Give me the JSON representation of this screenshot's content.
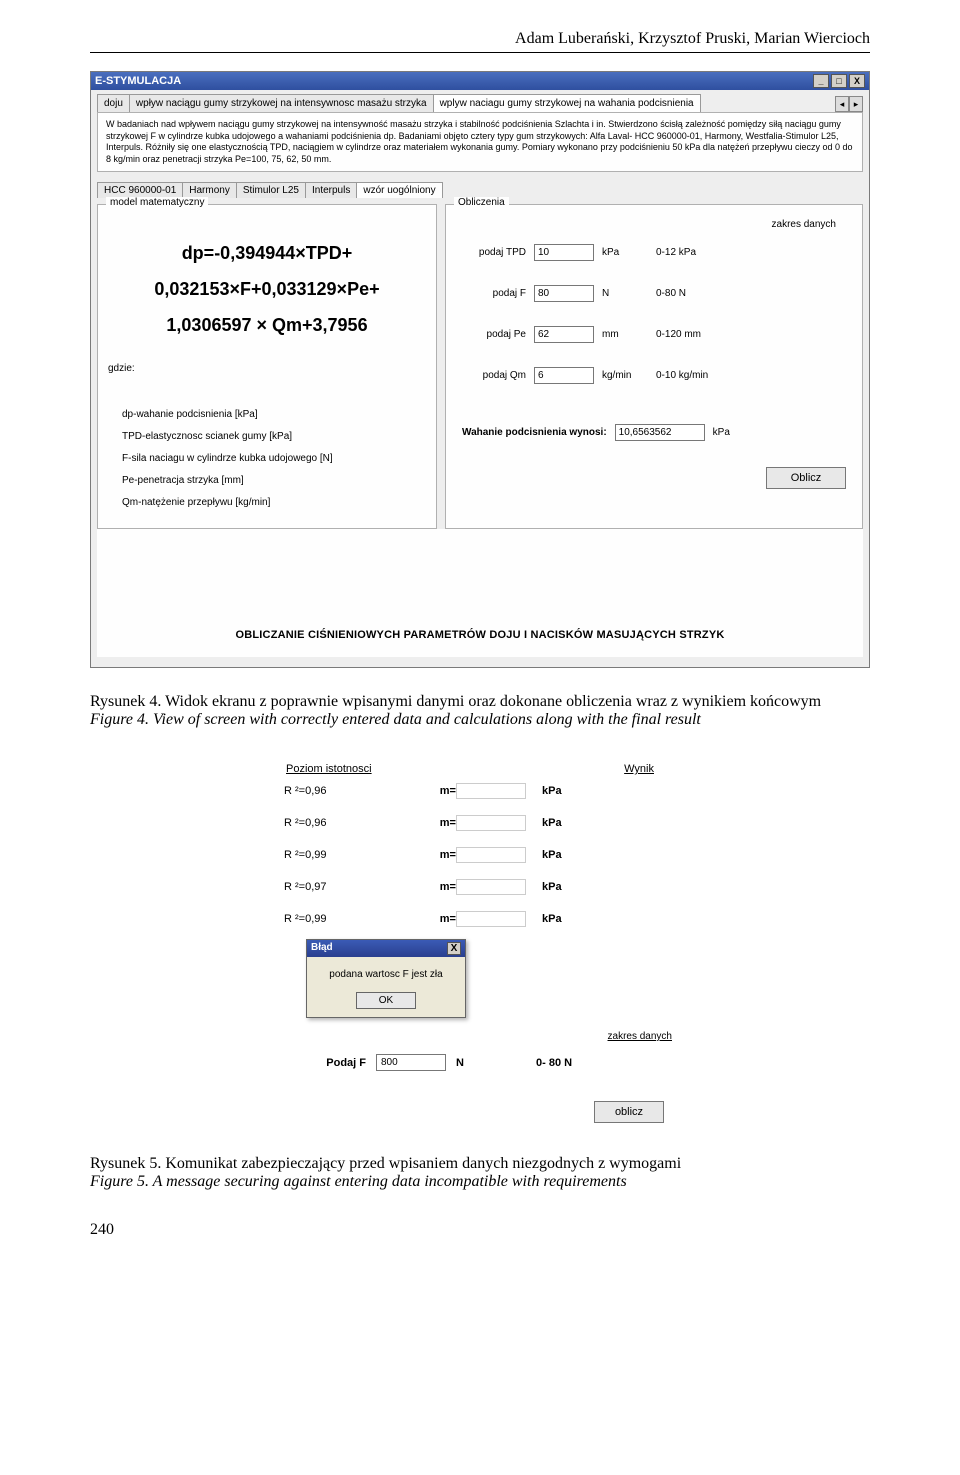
{
  "header": {
    "authors": "Adam Luberański, Krzysztof Pruski, Marian Wiercioch"
  },
  "fig4": {
    "app_title": "E-STYMULACJA",
    "winbtns": {
      "min": "_",
      "max": "□",
      "close": "X"
    },
    "maintabs": {
      "tab1": "doju",
      "tab2": "wpływ naciągu gumy strzykowej na intensywnosc masażu strzyka",
      "tab3": "wplyw naciagu gumy strzykowej na wahania podcisnienia",
      "scroll_left": "◂",
      "scroll_right": "▸"
    },
    "desc": "W badaniach nad wpływem naciągu gumy strzykowej na intensywność masażu strzyka i stabilność podciśnienia Szlachta i in. Stwierdzono ścisłą zależność pomiędzy siłą naciągu gumy strzykowej F w cylindrze kubka udojowego a wahaniami podciśnienia dp. Badaniami objęto cztery typy gum strzykowych: Alfa Laval- HCC 960000-01, Harmony, Westfalia-Stimulor L25, Interpuls. Różniły się one elastycznością TPD, naciągiem w cylindrze oraz materiałem wykonania gumy. Pomiary wykonano przy podciśnieniu 50 kPa dla natężeń przepływu cieczy od 0 do 8 kg/min oraz penetracji strzyka Pe=100, 75, 62, 50 mm.",
    "subtabs": {
      "t1": "HCC 960000-01",
      "t2": "Harmony",
      "t3": "Stimulor L25",
      "t4": "Interpuls",
      "t5": "wzór uogólniony"
    },
    "model_legend": "model matematyczny",
    "calc_legend": "Obliczenia",
    "formula": {
      "l1": "dp=-0,394944×TPD+",
      "l2": "0,032153×F+0,033129×Pe+",
      "l3": "1,0306597 × Qm+3,7956"
    },
    "where": "gdzie:",
    "defs": {
      "d1": "dp-wahanie podcisnienia [kPa]",
      "d2": "TPD-elastycznosc scianek gumy [kPa]",
      "d3": "F-sila naciagu w cylindrze kubka udojowego [N]",
      "d4": "Pe-penetracja strzyka [mm]",
      "d5": "Qm-natężenie przepływu [kg/min]"
    },
    "zakres_head": "zakres danych",
    "rows": {
      "r1": {
        "label": "podaj TPD",
        "value": "10",
        "unit": "kPa",
        "range": "0-12 kPa"
      },
      "r2": {
        "label": "podaj F",
        "value": "80",
        "unit": "N",
        "range": "0-80 N"
      },
      "r3": {
        "label": "podaj Pe",
        "value": "62",
        "unit": "mm",
        "range": "0-120 mm"
      },
      "r4": {
        "label": "podaj Qm",
        "value": "6",
        "unit": "kg/min",
        "range": "0-10 kg/min"
      }
    },
    "result": {
      "label": "Wahanie podcisnienia wynosi:",
      "value": "10,6563562",
      "unit": "kPa"
    },
    "btn_oblicz": "Oblicz",
    "footer": "OBLICZANIE CIŚNIENIOWYCH PARAMETRÓW DOJU I NACISKÓW MASUJĄCYCH STRZYK"
  },
  "caption4": {
    "line1": "Rysunek 4. Widok ekranu z poprawnie wpisanymi danymi oraz dokonane obliczenia wraz z wynikiem końcowym",
    "line2": "Figure 4. View of screen with correctly entered data and calculations along with the final result"
  },
  "fig5": {
    "head_left": "Poziom istotnosci",
    "head_right": "Wynik",
    "rows": [
      {
        "r": "R ²=0,96",
        "m": "m=",
        "unit": "kPa"
      },
      {
        "r": "R ²=0,96",
        "m": "m=",
        "unit": "kPa"
      },
      {
        "r": "R ²=0,99",
        "m": "m=",
        "unit": "kPa"
      },
      {
        "r": "R ²=0,97",
        "m": "m=",
        "unit": "kPa"
      },
      {
        "r": "R ²=0,99",
        "m": "m=",
        "unit": "kPa"
      }
    ],
    "dlg_title": "Błąd",
    "dlg_close": "X",
    "dlg_msg": "podana wartosc F jest zła",
    "dlg_ok": "OK",
    "zakres": "zakres danych",
    "podajF": "Podaj F",
    "f_value": "800",
    "unitN": "N",
    "rangeF": "0- 80 N",
    "btn": "oblicz"
  },
  "caption5": {
    "line1": "Rysunek 5. Komunikat zabezpieczający przed wpisaniem danych niezgodnych z wymogami",
    "line2": "Figure 5. A message securing against entering data incompatible with requirements"
  },
  "pagenum": "240"
}
